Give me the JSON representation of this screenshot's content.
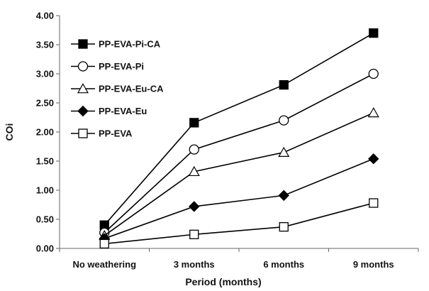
{
  "chart_data": {
    "type": "line",
    "xlabel": "Period (months)",
    "ylabel": "COi",
    "categories": [
      "No weathering",
      "3 months",
      "6 months",
      "9 months"
    ],
    "ylim": [
      0,
      4
    ],
    "yticks": [
      "0.00",
      "0.50",
      "1.00",
      "1.50",
      "2.00",
      "2.50",
      "3.00",
      "3.50",
      "4.00"
    ],
    "grid": false,
    "legend_position": "top-left",
    "series": [
      {
        "name": "PP-EVA-Pi-CA",
        "marker": "square-filled",
        "values": [
          0.4,
          2.16,
          2.81,
          3.7
        ]
      },
      {
        "name": "PP-EVA-Pi",
        "marker": "circle-open",
        "values": [
          0.27,
          1.7,
          2.2,
          3.0
        ]
      },
      {
        "name": "PP-EVA-Eu-CA",
        "marker": "triangle-open",
        "values": [
          0.22,
          1.32,
          1.65,
          2.33
        ]
      },
      {
        "name": "PP-EVA-Eu",
        "marker": "diamond-filled",
        "values": [
          0.17,
          0.72,
          0.91,
          1.54
        ]
      },
      {
        "name": "PP-EVA",
        "marker": "square-open",
        "values": [
          0.08,
          0.24,
          0.37,
          0.78
        ]
      }
    ],
    "colors": {
      "line": "#000000",
      "marker_fill": "#000000",
      "marker_open": "#ffffff"
    }
  }
}
